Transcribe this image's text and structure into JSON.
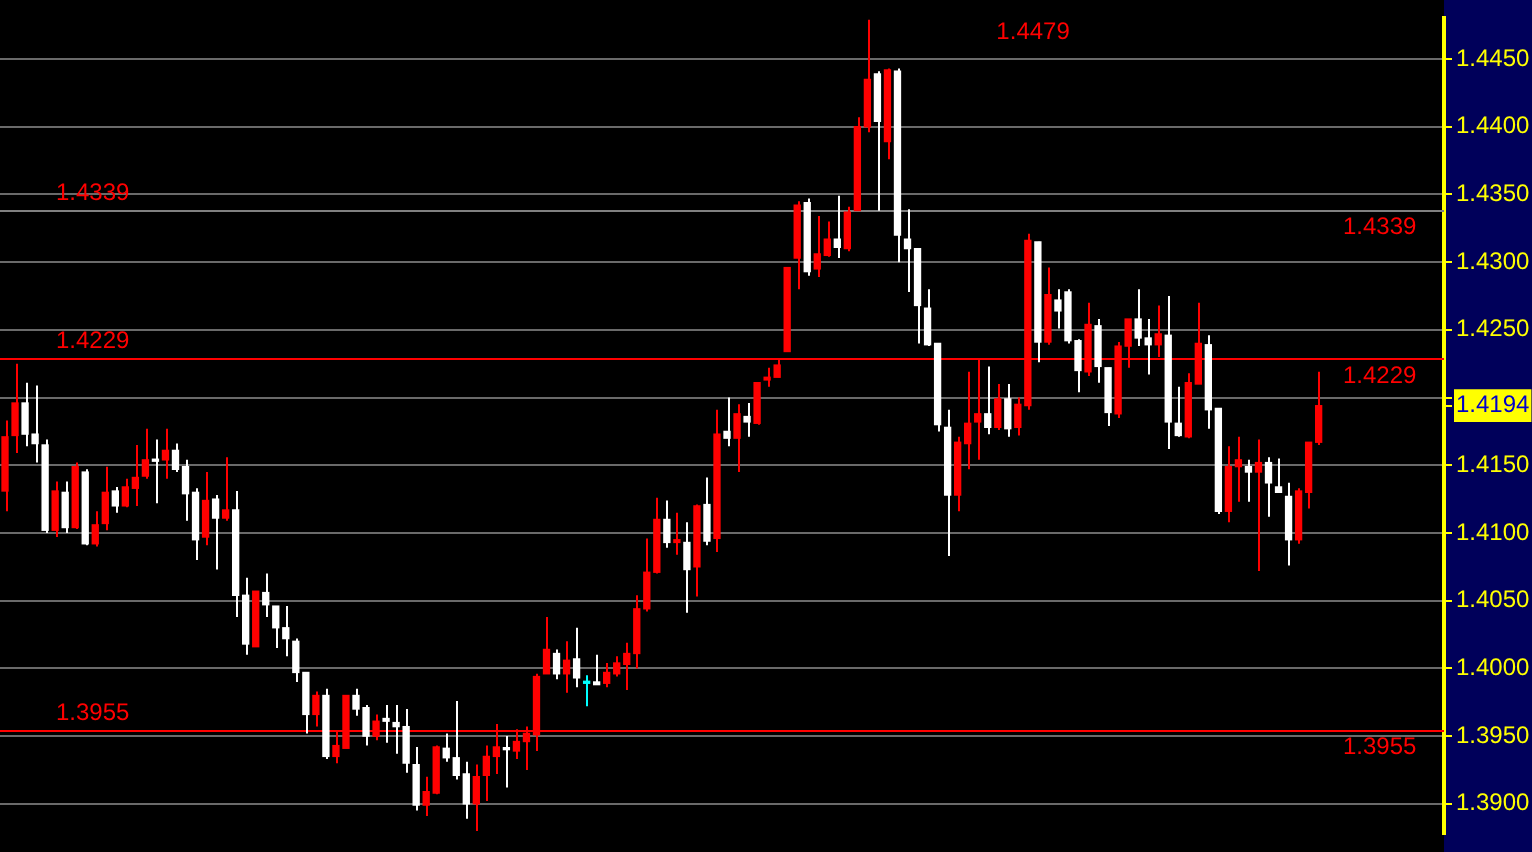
{
  "chart_data": {
    "type": "candlestick",
    "categories": [
      null,
      null,
      null,
      null,
      null,
      null,
      null,
      null,
      null,
      null,
      null,
      null,
      null,
      null,
      null,
      null,
      null,
      null,
      null,
      null,
      null,
      null,
      null,
      null,
      null,
      null,
      null,
      null,
      null,
      null,
      null,
      null,
      null,
      null,
      null,
      null,
      null,
      null,
      null,
      null,
      null,
      null,
      null,
      null,
      null,
      null,
      null,
      null,
      null,
      null,
      null,
      null,
      null,
      null,
      null,
      null,
      null,
      null,
      null,
      null,
      null,
      null,
      null,
      null,
      null,
      null,
      null,
      null,
      null,
      null,
      null,
      null,
      null,
      null,
      null,
      null,
      null,
      null,
      null,
      null,
      null,
      null,
      null,
      null,
      null,
      null,
      null,
      null,
      null,
      null,
      null,
      null,
      null,
      null,
      null,
      null,
      null,
      null,
      null,
      null,
      null,
      null,
      null,
      null,
      null,
      null,
      null,
      null,
      null,
      null,
      null,
      null,
      null,
      null,
      null,
      null,
      null,
      null,
      null,
      null,
      null,
      null,
      null,
      null,
      null,
      null,
      null,
      null,
      null,
      null,
      null,
      null,
      null,
      null,
      null,
      null,
      null,
      null,
      null,
      null,
      null,
      null,
      null,
      null
    ],
    "ohlc": [
      [
        1.4131,
        1.4183,
        1.4116,
        1.4171
      ],
      [
        1.4172,
        1.4225,
        1.4159,
        1.4196
      ],
      [
        1.4196,
        1.4211,
        1.4164,
        1.4173
      ],
      [
        1.4173,
        1.4209,
        1.4152,
        1.4166
      ],
      [
        1.4165,
        1.4169,
        1.41,
        1.4102
      ],
      [
        1.4102,
        1.4138,
        1.4097,
        1.4131
      ],
      [
        1.413,
        1.4138,
        1.41,
        1.4104
      ],
      [
        1.4104,
        1.4152,
        1.4103,
        1.4149
      ],
      [
        1.4145,
        1.4147,
        1.4091,
        1.4092
      ],
      [
        1.4092,
        1.4116,
        1.409,
        1.4106
      ],
      [
        1.4107,
        1.4149,
        1.4102,
        1.413
      ],
      [
        1.4131,
        1.4134,
        1.4115,
        1.412
      ],
      [
        1.412,
        1.414,
        1.4119,
        1.4134
      ],
      [
        1.4133,
        1.4165,
        1.412,
        1.4141
      ],
      [
        1.4142,
        1.4177,
        1.414,
        1.4154
      ],
      [
        1.4154,
        1.4169,
        1.4122,
        1.4153
      ],
      [
        1.4154,
        1.4177,
        1.414,
        1.4161
      ],
      [
        1.4161,
        1.4166,
        1.4145,
        1.4147
      ],
      [
        1.4149,
        1.4154,
        1.4109,
        1.4129
      ],
      [
        1.413,
        1.4133,
        1.408,
        1.4095
      ],
      [
        1.4097,
        1.4145,
        1.4091,
        1.4124
      ],
      [
        1.4125,
        1.4128,
        1.4073,
        1.4111
      ],
      [
        1.4111,
        1.4156,
        1.4109,
        1.4117
      ],
      [
        1.4117,
        1.4131,
        1.4038,
        1.4054
      ],
      [
        1.4054,
        1.4067,
        1.401,
        1.4018
      ],
      [
        1.4016,
        1.4057,
        1.4016,
        1.4057
      ],
      [
        1.4056,
        1.407,
        1.4038,
        1.4047
      ],
      [
        1.4046,
        1.4046,
        1.4015,
        1.403
      ],
      [
        1.403,
        1.4046,
        1.4009,
        1.4022
      ],
      [
        1.402,
        1.4022,
        1.399,
        1.3997
      ],
      [
        1.3997,
        1.3997,
        1.3952,
        1.3966
      ],
      [
        1.3966,
        1.3983,
        1.3957,
        1.398
      ],
      [
        1.398,
        1.3985,
        1.3933,
        1.3935
      ],
      [
        1.3935,
        1.3954,
        1.393,
        1.3943
      ],
      [
        1.3941,
        1.398,
        1.3941,
        1.398
      ],
      [
        1.398,
        1.3985,
        1.3965,
        1.397
      ],
      [
        1.3971,
        1.3973,
        1.3943,
        1.395
      ],
      [
        1.395,
        1.3966,
        1.3947,
        1.3961
      ],
      [
        1.3963,
        1.3973,
        1.3945,
        1.3961
      ],
      [
        1.396,
        1.3973,
        1.3937,
        1.3957
      ],
      [
        1.3957,
        1.397,
        1.3923,
        1.393
      ],
      [
        1.3929,
        1.3942,
        1.3895,
        1.3899
      ],
      [
        1.3899,
        1.392,
        1.3891,
        1.3909
      ],
      [
        1.3908,
        1.3943,
        1.3907,
        1.3942
      ],
      [
        1.3941,
        1.3952,
        1.3931,
        1.3934
      ],
      [
        1.3934,
        1.3976,
        1.3918,
        1.3921
      ],
      [
        1.3922,
        1.3931,
        1.3889,
        1.39
      ],
      [
        1.39,
        1.3929,
        1.388,
        1.392
      ],
      [
        1.3921,
        1.3943,
        1.3902,
        1.3935
      ],
      [
        1.3935,
        1.3959,
        1.3922,
        1.3942
      ],
      [
        1.3941,
        1.395,
        1.3912,
        1.394
      ],
      [
        1.3939,
        1.3955,
        1.3933,
        1.3946
      ],
      [
        1.3946,
        1.3957,
        1.3925,
        1.3952
      ],
      [
        1.3951,
        1.3996,
        1.3939,
        1.3994
      ],
      [
        1.3996,
        1.4038,
        1.3996,
        1.4014
      ],
      [
        1.4011,
        1.4014,
        1.3992,
        1.3996
      ],
      [
        1.3996,
        1.402,
        1.3982,
        1.4006
      ],
      [
        1.4007,
        1.403,
        1.3986,
        1.3993
      ],
      [
        1.3989,
        1.3995,
        1.3972,
        1.3989
      ],
      [
        1.399,
        1.401,
        1.3988,
        1.3988
      ],
      [
        1.3989,
        1.4004,
        1.3986,
        1.3997
      ],
      [
        1.3996,
        1.4009,
        1.3994,
        1.4004
      ],
      [
        1.4003,
        1.4019,
        1.3984,
        1.4011
      ],
      [
        1.4011,
        1.4054,
        1.4,
        1.4044
      ],
      [
        1.4044,
        1.4096,
        1.4042,
        1.4071
      ],
      [
        1.4071,
        1.4126,
        1.407,
        1.411
      ],
      [
        1.411,
        1.4124,
        1.4089,
        1.4093
      ],
      [
        1.4093,
        1.4115,
        1.4084,
        1.4095
      ],
      [
        1.4093,
        1.4108,
        1.4041,
        1.4073
      ],
      [
        1.4075,
        1.4121,
        1.4053,
        1.412
      ],
      [
        1.4121,
        1.4141,
        1.4091,
        1.4094
      ],
      [
        1.4096,
        1.4191,
        1.4086,
        1.4173
      ],
      [
        1.4175,
        1.42,
        1.4164,
        1.417
      ],
      [
        1.417,
        1.4195,
        1.4145,
        1.4188
      ],
      [
        1.4186,
        1.4196,
        1.4171,
        1.4182
      ],
      [
        1.4181,
        1.4211,
        1.418,
        1.4211
      ],
      [
        1.4213,
        1.4222,
        1.4208,
        1.4215
      ],
      [
        1.4215,
        1.4229,
        1.4215,
        1.4224
      ],
      [
        1.4234,
        1.4296,
        1.4234,
        1.4296
      ],
      [
        1.4303,
        1.4345,
        1.428,
        1.4342
      ],
      [
        1.4344,
        1.4347,
        1.429,
        1.4293
      ],
      [
        1.4295,
        1.4334,
        1.4289,
        1.4306
      ],
      [
        1.4305,
        1.433,
        1.4304,
        1.4317
      ],
      [
        1.4317,
        1.4349,
        1.4303,
        1.4311
      ],
      [
        1.431,
        1.4341,
        1.4308,
        1.4337
      ],
      [
        1.4338,
        1.4407,
        1.4338,
        1.44
      ],
      [
        1.44,
        1.4479,
        1.4396,
        1.4435
      ],
      [
        1.4439,
        1.4441,
        1.4338,
        1.4404
      ],
      [
        1.4389,
        1.4443,
        1.4376,
        1.4442
      ],
      [
        1.4441,
        1.4443,
        1.43,
        1.432
      ],
      [
        1.4317,
        1.4339,
        1.4278,
        1.431
      ],
      [
        1.431,
        1.431,
        1.424,
        1.4268
      ],
      [
        1.4266,
        1.428,
        1.4238,
        1.4239
      ],
      [
        1.424,
        1.424,
        1.4175,
        1.418
      ],
      [
        1.4178,
        1.4191,
        1.4083,
        1.4128
      ],
      [
        1.4128,
        1.4171,
        1.4116,
        1.4167
      ],
      [
        1.4166,
        1.4219,
        1.4147,
        1.4181
      ],
      [
        1.4182,
        1.4229,
        1.4154,
        1.4188
      ],
      [
        1.4188,
        1.4223,
        1.4173,
        1.4178
      ],
      [
        1.4178,
        1.421,
        1.4176,
        1.4199
      ],
      [
        1.4199,
        1.421,
        1.4171,
        1.4177
      ],
      [
        1.4178,
        1.42,
        1.4172,
        1.4195
      ],
      [
        1.4194,
        1.4321,
        1.4191,
        1.4316
      ],
      [
        1.4315,
        1.4315,
        1.4226,
        1.4241
      ],
      [
        1.4241,
        1.4296,
        1.4239,
        1.4276
      ],
      [
        1.4272,
        1.428,
        1.4251,
        1.4264
      ],
      [
        1.4278,
        1.428,
        1.424,
        1.4242
      ],
      [
        1.4242,
        1.4243,
        1.4204,
        1.422
      ],
      [
        1.4219,
        1.427,
        1.4216,
        1.4254
      ],
      [
        1.4253,
        1.4258,
        1.4211,
        1.4223
      ],
      [
        1.4222,
        1.4222,
        1.4179,
        1.4189
      ],
      [
        1.4188,
        1.4241,
        1.4185,
        1.4238
      ],
      [
        1.4238,
        1.4258,
        1.4222,
        1.4258
      ],
      [
        1.4258,
        1.428,
        1.4238,
        1.4244
      ],
      [
        1.4244,
        1.4258,
        1.4217,
        1.4239
      ],
      [
        1.4239,
        1.4268,
        1.423,
        1.4247
      ],
      [
        1.4246,
        1.4275,
        1.4162,
        1.4182
      ],
      [
        1.4181,
        1.4208,
        1.4171,
        1.4172
      ],
      [
        1.4171,
        1.4218,
        1.417,
        1.4211
      ],
      [
        1.421,
        1.427,
        1.421,
        1.424
      ],
      [
        1.4239,
        1.4246,
        1.4177,
        1.4191
      ],
      [
        1.4192,
        1.4192,
        1.4114,
        1.4116
      ],
      [
        1.4116,
        1.4164,
        1.4108,
        1.4149
      ],
      [
        1.4149,
        1.4171,
        1.4123,
        1.4154
      ],
      [
        1.4149,
        1.4154,
        1.4123,
        1.4145
      ],
      [
        1.4145,
        1.4169,
        1.4072,
        1.4152
      ],
      [
        1.4152,
        1.4156,
        1.4112,
        1.4137
      ],
      [
        1.4134,
        1.4155,
        1.413,
        1.413
      ],
      [
        1.4127,
        1.4137,
        1.4076,
        1.4095
      ],
      [
        1.4095,
        1.4133,
        1.4092,
        1.4131
      ],
      [
        1.413,
        1.4167,
        1.4118,
        1.4167
      ],
      [
        1.4167,
        1.4219,
        1.4165,
        1.4194
      ],
      null,
      null,
      null,
      null,
      null,
      null,
      null,
      null,
      null,
      null,
      null,
      null
    ],
    "colors": [
      "#ff0000",
      "#ff0000",
      "#ffffff",
      "#ffffff",
      "#ffffff",
      "#ff0000",
      "#ffffff",
      "#ff0000",
      "#ffffff",
      "#ff0000",
      "#ff0000",
      "#ffffff",
      "#ff0000",
      "#ff0000",
      "#ff0000",
      "#ffffff",
      "#ff0000",
      "#ffffff",
      "#ffffff",
      "#ffffff",
      "#ff0000",
      "#ffffff",
      "#ff0000",
      "#ffffff",
      "#ffffff",
      "#ff0000",
      "#ffffff",
      "#ffffff",
      "#ffffff",
      "#ffffff",
      "#ffffff",
      "#ff0000",
      "#ffffff",
      "#ff0000",
      "#ff0000",
      "#ffffff",
      "#ffffff",
      "#ff0000",
      "#ffffff",
      "#ffffff",
      "#ffffff",
      "#ffffff",
      "#ff0000",
      "#ff0000",
      "#ffffff",
      "#ffffff",
      "#ffffff",
      "#ff0000",
      "#ff0000",
      "#ff0000",
      "#ffffff",
      "#ff0000",
      "#ff0000",
      "#ff0000",
      "#ff0000",
      "#ffffff",
      "#ff0000",
      "#ffffff",
      "#00ffff",
      "#ffffff",
      "#ff0000",
      "#ff0000",
      "#ff0000",
      "#ff0000",
      "#ff0000",
      "#ff0000",
      "#ffffff",
      "#ff0000",
      "#ffffff",
      "#ff0000",
      "#ffffff",
      "#ff0000",
      "#ffffff",
      "#ff0000",
      "#ffffff",
      "#ff0000",
      "#ff0000",
      "#ff0000",
      "#ff0000",
      "#ff0000",
      "#ffffff",
      "#ff0000",
      "#ff0000",
      "#ffffff",
      "#ff0000",
      "#ff0000",
      "#ff0000",
      "#ffffff",
      "#ff0000",
      "#ffffff",
      "#ffffff",
      "#ffffff",
      "#ffffff",
      "#ffffff",
      "#ffffff",
      "#ff0000",
      "#ff0000",
      "#ff0000",
      "#ffffff",
      "#ff0000",
      "#ffffff",
      "#ff0000",
      "#ff0000",
      "#ffffff",
      "#ff0000",
      "#ffffff",
      "#ffffff",
      "#ffffff",
      "#ff0000",
      "#ffffff",
      "#ffffff",
      "#ff0000",
      "#ff0000",
      "#ffffff",
      "#ffffff",
      "#ff0000",
      "#ffffff",
      "#ffffff",
      "#ff0000",
      "#ff0000",
      "#ffffff",
      "#ffffff",
      "#ff0000",
      "#ff0000",
      "#ffffff",
      "#ff0000",
      "#ffffff",
      "#ffffff",
      "#ffffff",
      "#ff0000",
      "#ff0000",
      "#ff0000",
      null,
      null,
      null,
      null,
      null,
      null,
      null,
      null,
      null,
      null,
      null,
      null
    ],
    "ylim": [
      1.3878,
      1.448
    ],
    "yticks": [
      {
        "value": 1.39,
        "label": "1.3900"
      },
      {
        "value": 1.395,
        "label": "1.3950"
      },
      {
        "value": 1.4,
        "label": "1.4000"
      },
      {
        "value": 1.405,
        "label": "1.4050"
      },
      {
        "value": 1.41,
        "label": "1.4100"
      },
      {
        "value": 1.415,
        "label": "1.4150"
      },
      {
        "value": 1.42,
        "label": null
      },
      {
        "value": 1.425,
        "label": "1.4250"
      },
      {
        "value": 1.43,
        "label": "1.4300"
      },
      {
        "value": 1.435,
        "label": "1.4350"
      },
      {
        "value": 1.44,
        "label": "1.4400"
      },
      {
        "value": 1.445,
        "label": "1.4450"
      },
      {
        "value": 1.4194,
        "label": "1.4194"
      }
    ],
    "ref_lines": [
      {
        "axis": "y",
        "value": 1.4339,
        "label": "1.4339",
        "color": "#808080"
      },
      {
        "axis": "y",
        "value": 1.4229,
        "label": "1.4229",
        "color": "#ff0000"
      },
      {
        "axis": "y",
        "value": 1.3955,
        "label": "1.3955",
        "color": "#ff0000"
      }
    ],
    "annotations": [
      "1.4479",
      {
        "text": "1.4339",
        "y": 1.4339
      },
      {
        "text": "1.4229",
        "y": 1.4229
      },
      {
        "text": "1.3955",
        "y": 1.3955
      }
    ],
    "grid": "y",
    "legend": false
  }
}
